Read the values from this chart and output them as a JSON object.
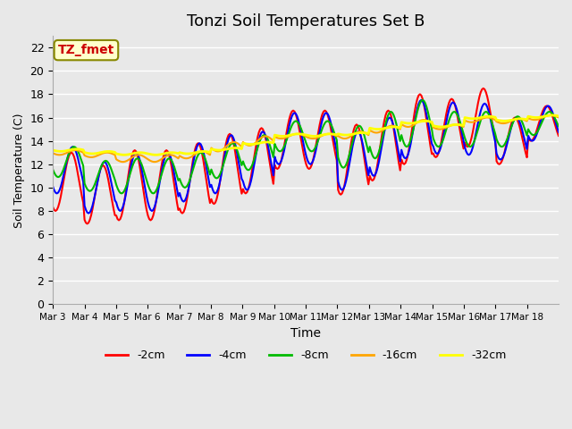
{
  "title": "Tonzi Soil Temperatures Set B",
  "xlabel": "Time",
  "ylabel": "Soil Temperature (C)",
  "annotation": "TZ_fmet",
  "ylim": [
    0,
    23
  ],
  "yticks": [
    0,
    2,
    4,
    6,
    8,
    10,
    12,
    14,
    16,
    18,
    20,
    22
  ],
  "xtick_labels": [
    "Mar 3",
    "Mar 4",
    "Mar 5",
    "Mar 6",
    "Mar 7",
    "Mar 8",
    "Mar 9",
    "Mar 10",
    "Mar 11",
    "Mar 12",
    "Mar 13",
    "Mar 14",
    "Mar 15",
    "Mar 16",
    "Mar 17",
    "Mar 18"
  ],
  "series_names": [
    "-2cm",
    "-4cm",
    "-8cm",
    "-16cm",
    "-32cm"
  ],
  "series_colors": [
    "#FF0000",
    "#0000FF",
    "#00BB00",
    "#FFA500",
    "#FFFF00"
  ],
  "series_lw": [
    1.5,
    1.5,
    1.5,
    1.5,
    2.0
  ],
  "background_color": "#E8E8E8",
  "grid_color": "#FFFFFF",
  "n_days": 16,
  "points_per_day": 24,
  "base_temps": {
    "-2cm": [
      10.5,
      9.4,
      10.2,
      10.2,
      10.8,
      11.6,
      12.3,
      14.1,
      14.1,
      12.4,
      13.6,
      15.0,
      15.1,
      16.0,
      14.0,
      15.5
    ],
    "-4cm": [
      11.5,
      10.0,
      10.5,
      10.5,
      11.3,
      12.0,
      12.3,
      14.2,
      14.2,
      12.3,
      13.5,
      15.0,
      15.1,
      15.0,
      14.2,
      15.5
    ],
    "-8cm": [
      12.2,
      11.0,
      11.0,
      11.0,
      11.5,
      12.3,
      13.0,
      14.4,
      14.4,
      13.5,
      14.5,
      15.5,
      15.0,
      15.0,
      14.8,
      15.5
    ],
    "-16cm": [
      13.0,
      12.8,
      12.5,
      12.5,
      12.8,
      13.5,
      14.0,
      14.4,
      14.4,
      14.5,
      15.0,
      15.5,
      15.2,
      15.8,
      15.7,
      16.0
    ],
    "-32cm": [
      13.2,
      13.0,
      12.9,
      12.9,
      13.0,
      13.3,
      13.8,
      14.5,
      14.5,
      14.6,
      15.1,
      15.6,
      15.3,
      16.0,
      15.8,
      16.1
    ]
  },
  "amplitudes": {
    "-2cm": [
      2.5,
      2.5,
      3.0,
      3.0,
      3.0,
      3.0,
      2.8,
      2.5,
      2.5,
      3.0,
      3.0,
      3.0,
      2.5,
      2.5,
      2.0,
      1.5
    ],
    "-4cm": [
      2.0,
      2.2,
      2.5,
      2.5,
      2.5,
      2.5,
      2.5,
      2.2,
      2.2,
      2.5,
      2.5,
      2.5,
      2.2,
      2.2,
      1.8,
      1.5
    ],
    "-8cm": [
      1.3,
      1.3,
      1.5,
      1.5,
      1.5,
      1.5,
      1.5,
      1.3,
      1.3,
      1.8,
      2.0,
      2.0,
      1.5,
      1.5,
      1.3,
      1.0
    ],
    "-16cm": [
      0.2,
      0.2,
      0.3,
      0.3,
      0.3,
      0.4,
      0.4,
      0.2,
      0.2,
      0.3,
      0.3,
      0.3,
      0.2,
      0.2,
      0.2,
      0.2
    ],
    "-32cm": [
      0.1,
      0.1,
      0.1,
      0.1,
      0.1,
      0.1,
      0.1,
      0.1,
      0.1,
      0.1,
      0.1,
      0.1,
      0.1,
      0.1,
      0.1,
      0.1
    ]
  },
  "peak_hours": [
    14,
    15,
    16,
    17,
    18
  ]
}
